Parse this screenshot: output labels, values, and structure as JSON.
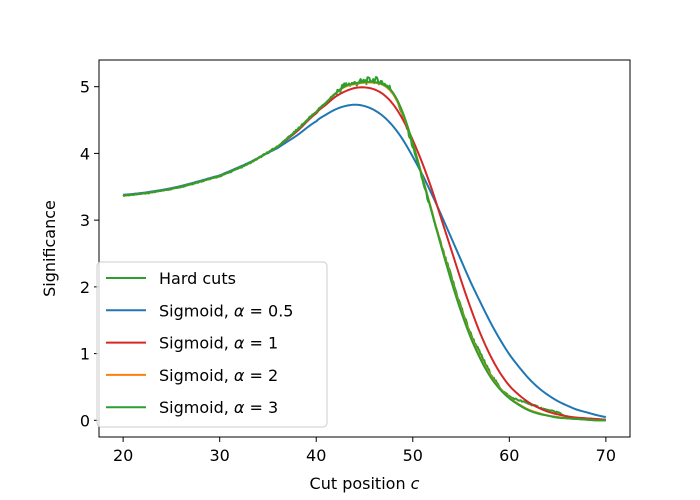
{
  "chart_data": {
    "type": "line",
    "xlabel": "Cut position",
    "xlabel_var": "c",
    "ylabel": "Significance",
    "xlim": [
      17.5,
      72.5
    ],
    "ylim": [
      -0.25,
      5.4
    ],
    "xticks": [
      20,
      30,
      40,
      50,
      60,
      70
    ],
    "yticks": [
      0,
      1,
      2,
      3,
      4,
      5
    ],
    "grid": false,
    "legend_position": "lower-left",
    "series": [
      {
        "name": "Hard cuts",
        "legend_prefix": "Hard cuts",
        "legend_alpha": "",
        "color": "#2ca02c",
        "noisy": true,
        "x": [
          20,
          25,
          30,
          33,
          36,
          38,
          40,
          41,
          42,
          43,
          44,
          45,
          46,
          47,
          48,
          49,
          50,
          51,
          52,
          53,
          54,
          55,
          56,
          57,
          58,
          59,
          60,
          61,
          62,
          63,
          64,
          65,
          66,
          67,
          68,
          69,
          70
        ],
        "y": [
          3.37,
          3.47,
          3.66,
          3.85,
          4.1,
          4.35,
          4.62,
          4.75,
          4.9,
          5.02,
          5.05,
          5.08,
          5.1,
          5.05,
          4.9,
          4.55,
          4.1,
          3.6,
          3.1,
          2.6,
          2.15,
          1.7,
          1.3,
          1.0,
          0.72,
          0.5,
          0.36,
          0.3,
          0.25,
          0.2,
          0.15,
          0.12,
          0.05,
          0.03,
          0.02,
          0.01,
          0.0
        ]
      },
      {
        "name": "Sigmoid, α = 0.5",
        "legend_prefix": "Sigmoid, ",
        "legend_alpha": "0.5",
        "color": "#1f77b4",
        "noisy": false,
        "x": [
          20,
          25,
          30,
          33,
          36,
          38,
          40,
          41,
          42,
          43,
          44,
          45,
          46,
          47,
          48,
          49,
          50,
          51,
          52,
          53,
          54,
          55,
          56,
          57,
          58,
          59,
          60,
          61,
          62,
          63,
          64,
          65,
          66,
          67,
          68,
          69,
          70
        ],
        "y": [
          3.38,
          3.48,
          3.67,
          3.86,
          4.08,
          4.27,
          4.48,
          4.58,
          4.66,
          4.71,
          4.73,
          4.71,
          4.65,
          4.55,
          4.4,
          4.2,
          3.95,
          3.68,
          3.38,
          3.06,
          2.73,
          2.4,
          2.07,
          1.77,
          1.48,
          1.22,
          0.99,
          0.8,
          0.63,
          0.49,
          0.38,
          0.29,
          0.22,
          0.16,
          0.12,
          0.08,
          0.05
        ]
      },
      {
        "name": "Sigmoid, α = 1",
        "legend_prefix": "Sigmoid, ",
        "legend_alpha": "1",
        "color": "#d62728",
        "noisy": false,
        "x": [
          20,
          25,
          30,
          33,
          36,
          38,
          40,
          41,
          42,
          43,
          44,
          45,
          46,
          47,
          48,
          49,
          50,
          51,
          52,
          53,
          54,
          55,
          56,
          57,
          58,
          59,
          60,
          61,
          62,
          63,
          64,
          65,
          66,
          67,
          68,
          69,
          70
        ],
        "y": [
          3.37,
          3.47,
          3.66,
          3.85,
          4.1,
          4.33,
          4.6,
          4.73,
          4.85,
          4.93,
          4.98,
          4.99,
          4.96,
          4.88,
          4.73,
          4.5,
          4.2,
          3.85,
          3.45,
          3.0,
          2.55,
          2.1,
          1.68,
          1.3,
          0.98,
          0.72,
          0.52,
          0.38,
          0.27,
          0.19,
          0.13,
          0.09,
          0.06,
          0.04,
          0.03,
          0.02,
          0.01
        ]
      },
      {
        "name": "Sigmoid, α = 2",
        "legend_prefix": "Sigmoid, ",
        "legend_alpha": "2",
        "color": "#ff7f0e",
        "noisy": false,
        "x": [
          20,
          25,
          30,
          33,
          36,
          38,
          40,
          41,
          42,
          43,
          44,
          45,
          46,
          47,
          48,
          49,
          50,
          51,
          52,
          53,
          54,
          55,
          56,
          57,
          58,
          59,
          60,
          61,
          62,
          63,
          64,
          65,
          66,
          67,
          68,
          69,
          70
        ],
        "y": [
          3.37,
          3.47,
          3.66,
          3.85,
          4.1,
          4.35,
          4.62,
          4.76,
          4.9,
          5.0,
          5.04,
          5.06,
          5.06,
          5.02,
          4.88,
          4.58,
          4.15,
          3.65,
          3.12,
          2.6,
          2.1,
          1.65,
          1.26,
          0.94,
          0.68,
          0.48,
          0.34,
          0.24,
          0.16,
          0.11,
          0.07,
          0.05,
          0.03,
          0.02,
          0.01,
          0.0,
          0.0
        ]
      },
      {
        "name": "Sigmoid, α = 3",
        "legend_prefix": "Sigmoid, ",
        "legend_alpha": "3",
        "color": "#2ca02c",
        "noisy": false,
        "x": [
          20,
          25,
          30,
          33,
          36,
          38,
          40,
          41,
          42,
          43,
          44,
          45,
          46,
          47,
          48,
          49,
          50,
          51,
          52,
          53,
          54,
          55,
          56,
          57,
          58,
          59,
          60,
          61,
          62,
          63,
          64,
          65,
          66,
          67,
          68,
          69,
          70
        ],
        "y": [
          3.37,
          3.47,
          3.66,
          3.85,
          4.1,
          4.35,
          4.62,
          4.76,
          4.9,
          5.01,
          5.05,
          5.07,
          5.07,
          5.03,
          4.9,
          4.6,
          4.15,
          3.63,
          3.1,
          2.58,
          2.08,
          1.63,
          1.24,
          0.92,
          0.66,
          0.47,
          0.33,
          0.23,
          0.15,
          0.1,
          0.07,
          0.04,
          0.03,
          0.02,
          0.01,
          0.0,
          0.0
        ]
      }
    ]
  }
}
